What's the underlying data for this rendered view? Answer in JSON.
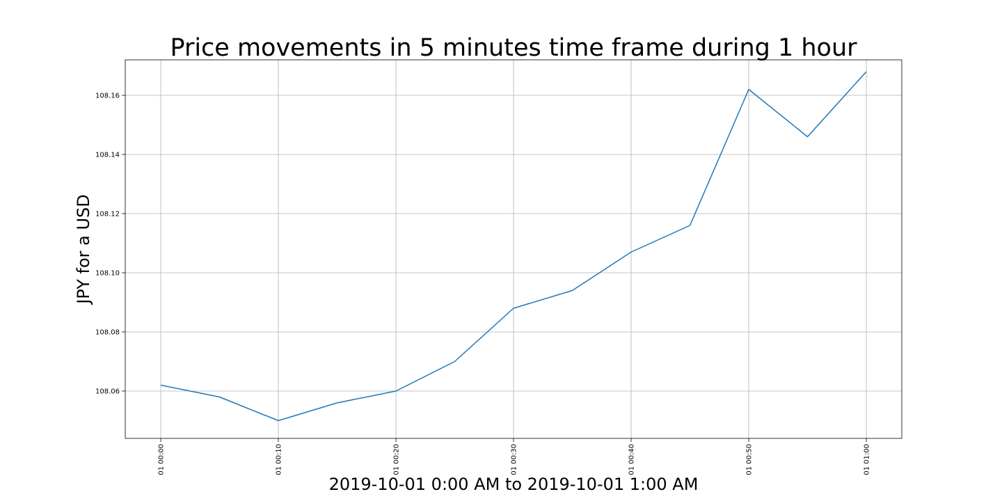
{
  "chart_data": {
    "type": "line",
    "title": "Price movements in 5 minutes time frame during 1 hour",
    "xlabel": "2019-10-01 0:00 AM to 2019-10-01 1:00 AM",
    "ylabel": "JPY for a USD",
    "x": [
      "01 00:00",
      "01 00:05",
      "01 00:10",
      "01 00:15",
      "01 00:20",
      "01 00:25",
      "01 00:30",
      "01 00:35",
      "01 00:40",
      "01 00:45",
      "01 00:50",
      "01 00:55",
      "01 01:00"
    ],
    "x_tick_labels": [
      "01 00:00",
      "01 00:10",
      "01 00:20",
      "01 00:30",
      "01 00:40",
      "01 00:50",
      "01 01:00"
    ],
    "y_tick_labels": [
      "108.06",
      "108.08",
      "108.10",
      "108.12",
      "108.14",
      "108.16"
    ],
    "series": [
      {
        "values": [
          108.062,
          108.058,
          108.05,
          108.056,
          108.06,
          108.07,
          108.088,
          108.094,
          108.107,
          108.116,
          108.162,
          108.146,
          108.168
        ],
        "color": "#1f77b4"
      }
    ],
    "ylim": [
      108.044,
      108.172
    ],
    "grid": true,
    "legend": "none"
  }
}
